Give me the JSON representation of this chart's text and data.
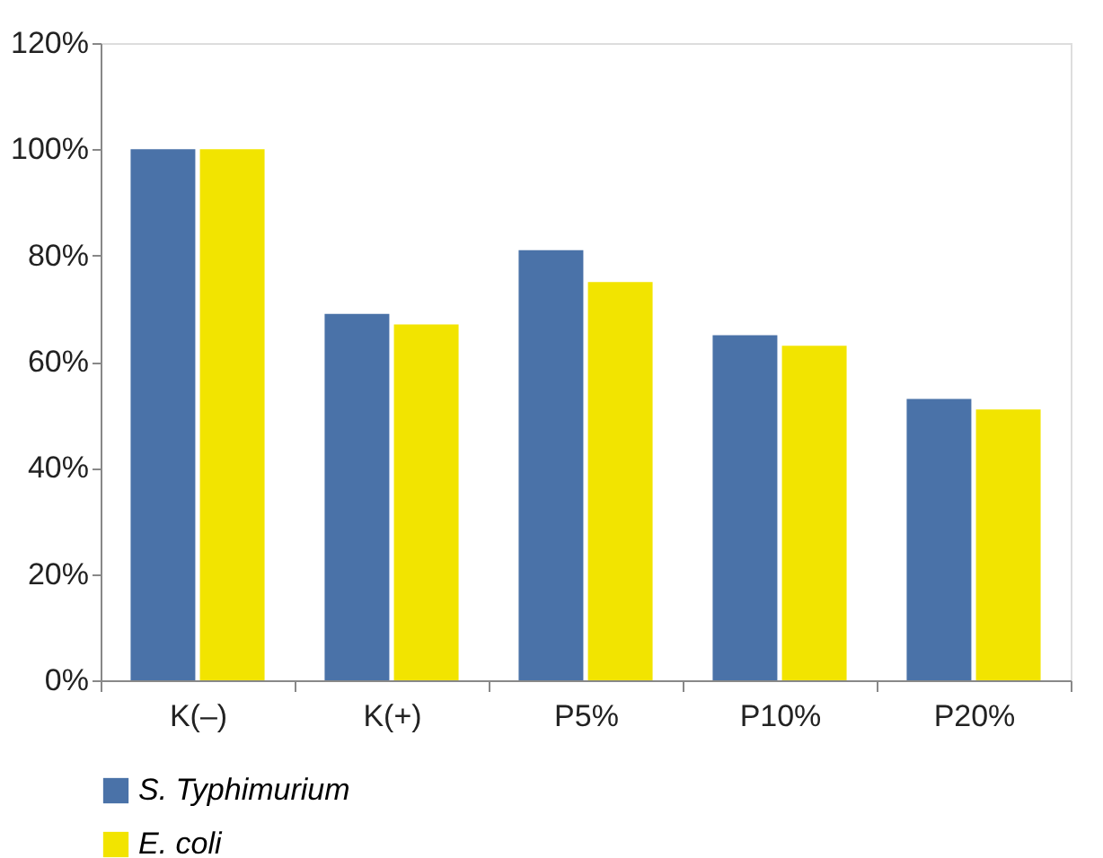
{
  "chart_data": {
    "type": "bar",
    "categories": [
      "K(–)",
      "K(+)",
      "P5%",
      "P10%",
      "P20%"
    ],
    "series": [
      {
        "name": "S. Typhimurium",
        "color": "#4a72a8",
        "values": [
          100,
          69,
          81,
          65,
          53
        ]
      },
      {
        "name": "E. coli",
        "color": "#f2e400",
        "values": [
          100,
          67,
          75,
          63,
          51
        ]
      }
    ],
    "ylim": [
      0,
      120
    ],
    "yticks": [
      {
        "value": 0,
        "label": "0%"
      },
      {
        "value": 20,
        "label": "20%"
      },
      {
        "value": 40,
        "label": "40%"
      },
      {
        "value": 60,
        "label": "60%"
      },
      {
        "value": 80,
        "label": "80%"
      },
      {
        "value": 100,
        "label": "100%"
      },
      {
        "value": 120,
        "label": "120%"
      }
    ],
    "grid": false,
    "legend": "bottom"
  }
}
